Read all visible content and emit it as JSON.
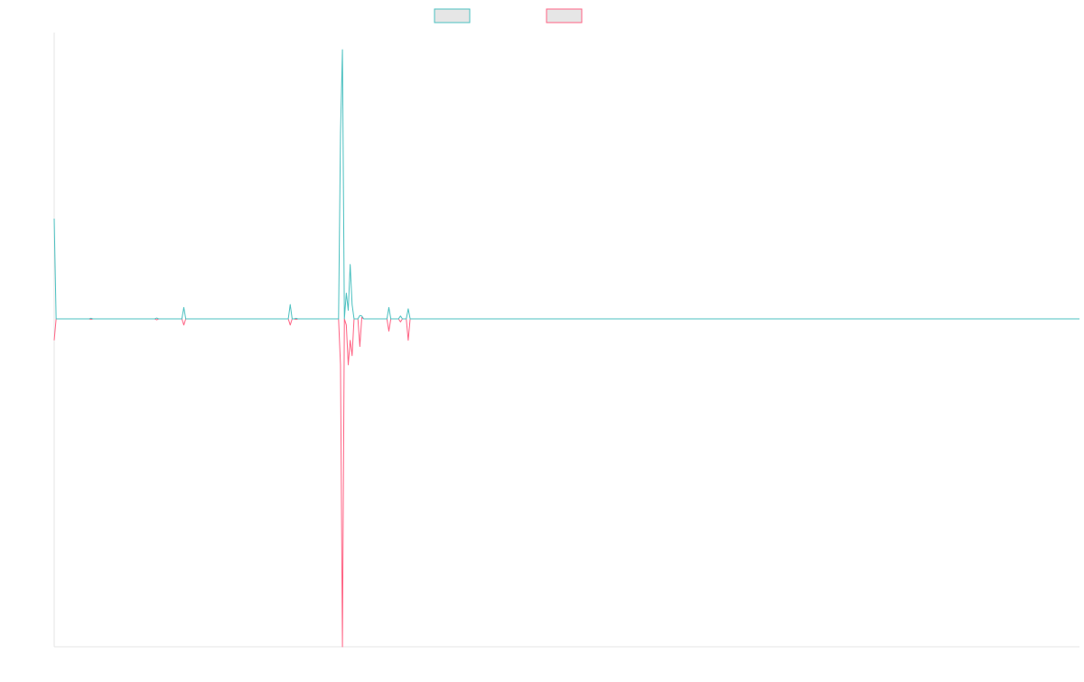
{
  "colors": {
    "series_1": "#4bc0c0",
    "series_2": "#ff6384",
    "legend_fill": "#e6e6e6",
    "axis": "#e6e6e6"
  },
  "chart_data": {
    "type": "line",
    "title": "",
    "xlabel": "",
    "ylabel": "",
    "x_count": 531,
    "ylim": [
      -1,
      1
    ],
    "grid": false,
    "legend": "top-center",
    "series": [
      {
        "color": "#4bc0c0",
        "points": [
          [
            0,
            0.35
          ],
          [
            1,
            0.0
          ],
          [
            18,
            0.0
          ],
          [
            19,
            0.002
          ],
          [
            20,
            0.0
          ],
          [
            52,
            0.0
          ],
          [
            53,
            0.003
          ],
          [
            54,
            0.0
          ],
          [
            66,
            0.0
          ],
          [
            67,
            0.04
          ],
          [
            68,
            0.0
          ],
          [
            121,
            0.0
          ],
          [
            122,
            0.05
          ],
          [
            123,
            0.0
          ],
          [
            124,
            0.0
          ],
          [
            125,
            0.002
          ],
          [
            126,
            0.0
          ],
          [
            147,
            0.0
          ],
          [
            148,
            0.65
          ],
          [
            149,
            0.94
          ],
          [
            150,
            0.0
          ],
          [
            151,
            0.09
          ],
          [
            152,
            0.03
          ],
          [
            153,
            0.19
          ],
          [
            154,
            0.05
          ],
          [
            155,
            0.0
          ],
          [
            156,
            0.0
          ],
          [
            157,
            0.0
          ],
          [
            158,
            0.012
          ],
          [
            159,
            0.01
          ],
          [
            160,
            0.0
          ],
          [
            172,
            0.0
          ],
          [
            173,
            0.04
          ],
          [
            174,
            0.0
          ],
          [
            178,
            0.0
          ],
          [
            179,
            0.01
          ],
          [
            180,
            0.0
          ],
          [
            182,
            0.0
          ],
          [
            183,
            0.035
          ],
          [
            184,
            0.0
          ],
          [
            530,
            0.0
          ]
        ]
      },
      {
        "color": "#ff6384",
        "points": [
          [
            0,
            -0.07
          ],
          [
            1,
            0.0
          ],
          [
            18,
            0.0
          ],
          [
            19,
            -0.002
          ],
          [
            20,
            0.0
          ],
          [
            52,
            0.0
          ],
          [
            53,
            -0.003
          ],
          [
            54,
            0.0
          ],
          [
            66,
            0.0
          ],
          [
            67,
            -0.02
          ],
          [
            68,
            0.0
          ],
          [
            121,
            0.0
          ],
          [
            122,
            -0.02
          ],
          [
            123,
            0.0
          ],
          [
            124,
            0.0
          ],
          [
            125,
            -0.002
          ],
          [
            126,
            0.0
          ],
          [
            147,
            0.0
          ],
          [
            148,
            -0.15
          ],
          [
            149,
            -1.07
          ],
          [
            150,
            0.0
          ],
          [
            151,
            -0.02
          ],
          [
            152,
            -0.15
          ],
          [
            153,
            -0.07
          ],
          [
            154,
            -0.12
          ],
          [
            155,
            0.0
          ],
          [
            156,
            0.0
          ],
          [
            157,
            0.0
          ],
          [
            158,
            -0.09
          ],
          [
            159,
            0.005
          ],
          [
            160,
            0.0
          ],
          [
            172,
            0.0
          ],
          [
            173,
            -0.04
          ],
          [
            174,
            0.0
          ],
          [
            178,
            0.0
          ],
          [
            179,
            -0.01
          ],
          [
            180,
            0.0
          ],
          [
            182,
            0.0
          ],
          [
            183,
            -0.07
          ],
          [
            184,
            0.0
          ],
          [
            530,
            0.0
          ]
        ]
      }
    ]
  }
}
